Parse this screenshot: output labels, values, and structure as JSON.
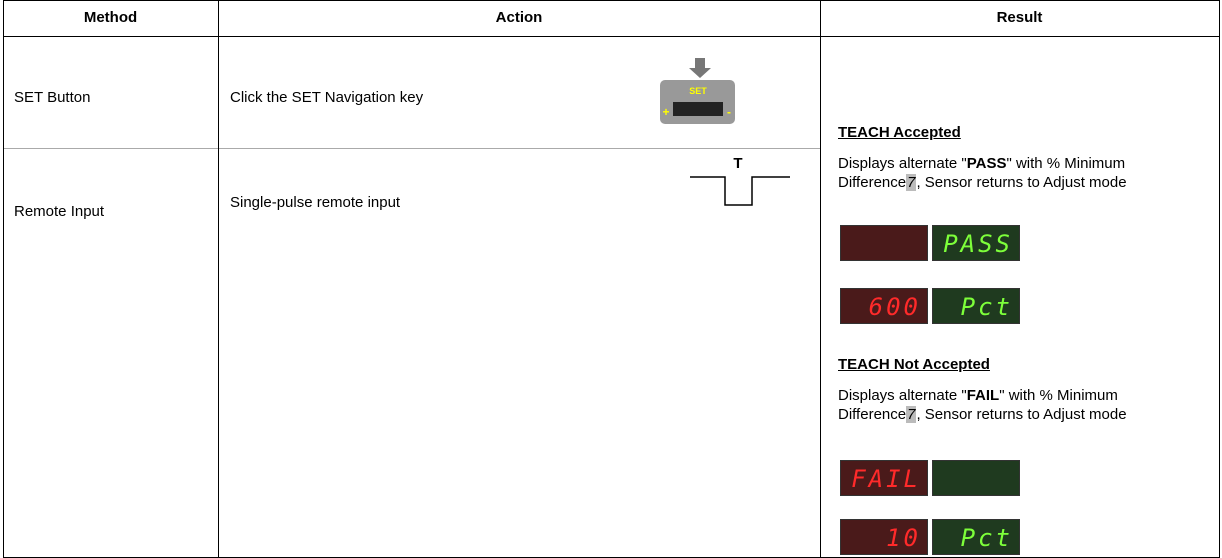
{
  "header": {
    "method": "Method",
    "action": "Action",
    "result": "Result"
  },
  "rows": [
    {
      "method": "SET Button",
      "action": "Click the SET Navigation key",
      "icon": {
        "label": "SET",
        "plus": "+",
        "minus": "-"
      }
    },
    {
      "method": "Remote Input",
      "action": "Single-pulse remote input",
      "pulse_label": "T"
    }
  ],
  "result": {
    "accepted": {
      "heading": "TEACH Accepted",
      "text": [
        "Displays alternate \"",
        "PASS",
        "\" with % Minimum Difference",
        "7",
        ", Sensor returns to Adjust mode"
      ],
      "displays": [
        {
          "right": "PASS"
        },
        {
          "left": "600",
          "right": "Pct"
        }
      ]
    },
    "not_accepted": {
      "heading": "TEACH Not Accepted",
      "text": [
        "Displays alternate \"",
        "FAIL",
        "\" with % Minimum Difference",
        "7",
        ", Sensor returns to Adjust mode"
      ],
      "displays": [
        {
          "left": "FAIL"
        },
        {
          "left": "10",
          "right": "Pct"
        }
      ]
    }
  }
}
